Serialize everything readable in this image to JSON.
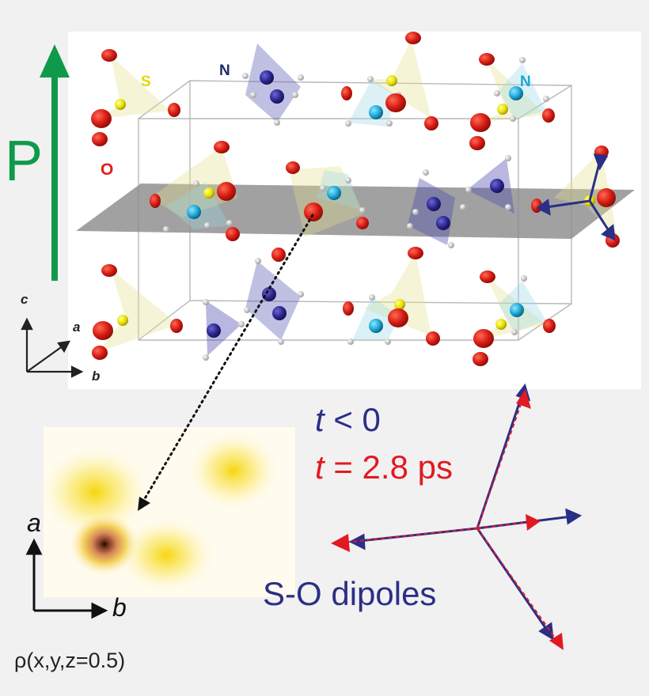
{
  "labels": {
    "polarization": "P",
    "sulfur": "S",
    "nitrogen_left": "N",
    "nitrogen_right": "N",
    "oxygen": "O",
    "axis_c": "c",
    "axis_a": "a",
    "axis_b": "b",
    "map_axis_a": "a",
    "map_axis_b": "b",
    "density_label": "ρ(x,y,z=0.5)",
    "time_before_var": "t",
    "time_before_rest": " < 0",
    "time_after_var": "t",
    "time_after_rest": " = 2.8 ps",
    "dipoles": "S-O dipoles"
  },
  "colors": {
    "polarization": "#0f9a4b",
    "sulfur": "#e8d800",
    "nitrogen": "#2b2f86",
    "nitrogen_light": "#1aa7d8",
    "oxygen": "#e0201a",
    "before": "#2b2f86",
    "after": "#e11a22"
  }
}
